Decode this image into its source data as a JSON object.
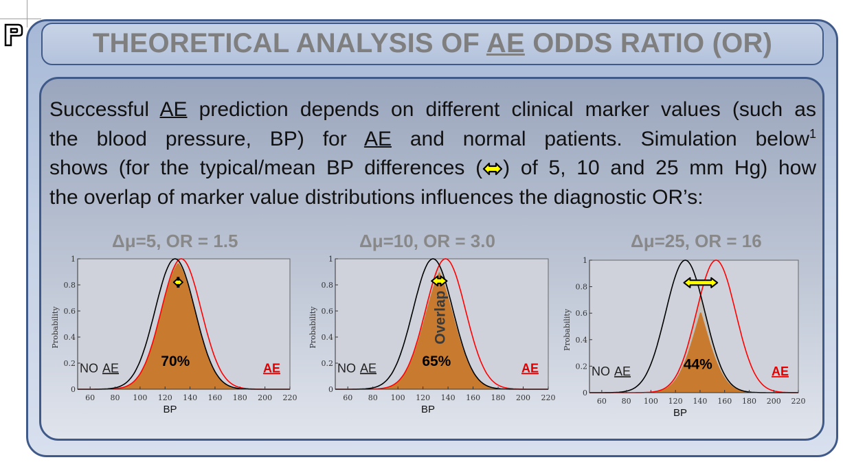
{
  "slide": {
    "title_parts": [
      "THEORETICAL ANALYSIS OF ",
      "AE",
      " ODDS RATIO (OR)"
    ],
    "paragraph": {
      "l1": [
        "Successful ",
        "AE",
        " prediction depends on different clinical marker values (such as"
      ],
      "l2": [
        "the blood pressure, BP) for ",
        "AE",
        " and normal patients. Simulation below",
        "1"
      ],
      "l3": [
        "shows (for the typical/mean BP differences (",
        ") of  5, 10 and 25 mm Hg) how"
      ],
      "l4": "the overlap of marker value distributions influences the diagnostic OR’s:"
    }
  },
  "colors": {
    "no_ae_curve": "#000000",
    "ae_curve": "#ff0000",
    "overlap_fill": "#c87a2e",
    "gray_fill": "#c4c0bb",
    "arrow_fill": "#ffff00",
    "ae_label": "#e00000",
    "title_gray": "#7f7f7f"
  },
  "chart_data": [
    {
      "type": "area",
      "title": "Δμ=5, OR = 1.5",
      "xlabel": "BP",
      "ylabel": "Probability",
      "xlim": [
        50,
        220
      ],
      "ylim": [
        0,
        1
      ],
      "x_ticks": [
        "60",
        "80",
        "100",
        "120",
        "140",
        "160",
        "180",
        "200",
        "220"
      ],
      "y_ticks": [
        "0",
        "0.2",
        "0.4",
        "0.6",
        "0.8",
        "1"
      ],
      "series": [
        {
          "name": "NO AE",
          "mean": 128,
          "sd": 16,
          "peak": 1.0
        },
        {
          "name": "AE",
          "mean": 133,
          "sd": 16,
          "peak": 1.0
        }
      ],
      "overlap_label": "70%",
      "overlap_peak": 0.97,
      "legend_no_ae": "NO AE",
      "legend_ae": "AE",
      "legend_placement": "bottom-left / bottom-right",
      "arrow_y": 0.82
    },
    {
      "type": "area",
      "title": "Δμ=10, OR = 3.0",
      "xlabel": "BP",
      "ylabel": "Probability",
      "xlim": [
        50,
        220
      ],
      "ylim": [
        0,
        1
      ],
      "x_ticks": [
        "60",
        "80",
        "100",
        "120",
        "140",
        "160",
        "180",
        "200",
        "220"
      ],
      "y_ticks": [
        "0",
        "0.2",
        "0.4",
        "0.6",
        "0.8",
        "1"
      ],
      "series": [
        {
          "name": "NO AE",
          "mean": 128,
          "sd": 16,
          "peak": 1.0
        },
        {
          "name": "AE",
          "mean": 138,
          "sd": 16,
          "peak": 1.0
        }
      ],
      "overlap_label": "65%",
      "overlap_peak": 0.9,
      "overlap_rotated_text": "Overlap",
      "legend_no_ae": "NO AE",
      "legend_ae": "AE",
      "legend_placement": "bottom-left / bottom-right",
      "arrow_y": 0.83
    },
    {
      "type": "area",
      "title": "Δμ=25, OR = 16",
      "xlabel": "BP",
      "ylabel": "Probability",
      "xlim": [
        50,
        220
      ],
      "ylim": [
        0,
        1
      ],
      "x_ticks": [
        "60",
        "80",
        "100",
        "120",
        "140",
        "160",
        "180",
        "200",
        "220"
      ],
      "y_ticks": [
        "0",
        "0.2",
        "0.4",
        "0.6",
        "0.8",
        "1"
      ],
      "series": [
        {
          "name": "NO AE",
          "mean": 128,
          "sd": 16,
          "peak": 1.0
        },
        {
          "name": "AE",
          "mean": 153,
          "sd": 16,
          "peak": 1.0
        }
      ],
      "overlap_label": "44%",
      "overlap_peak": 0.62,
      "legend_no_ae": "NO AE",
      "legend_ae": "AE",
      "legend_placement": "bottom-left / bottom-right",
      "arrow_y": 0.83
    }
  ]
}
